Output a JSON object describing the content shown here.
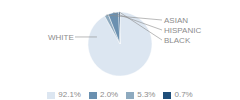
{
  "chart_data": {
    "type": "pie",
    "categories": [
      "WHITE",
      "ASIAN",
      "HISPANIC",
      "BLACK"
    ],
    "values": [
      92.1,
      2.0,
      5.3,
      0.7
    ],
    "colors": [
      "#dce6f1",
      "#8eaabf",
      "#6a90b0",
      "#1f4e79"
    ],
    "legend": "bottom",
    "legend_labels": [
      "92.1%",
      "2.0%",
      "5.3%",
      "0.7%"
    ],
    "legend_colors": [
      "#dce6f1",
      "#6a90b0",
      "#8eaabf",
      "#1f4e79"
    ]
  }
}
